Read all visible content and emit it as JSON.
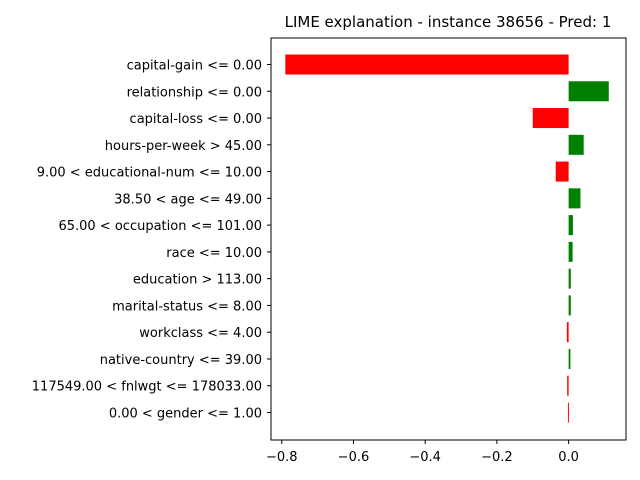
{
  "chart_data": {
    "type": "bar",
    "orientation": "horizontal",
    "title": "LIME explanation - instance 38656 - Pred: 1",
    "xlabel": "",
    "ylabel": "",
    "xlim": [
      -0.83,
      0.16
    ],
    "xticks": [
      -0.8,
      -0.6,
      -0.4,
      -0.2,
      0.0
    ],
    "xtick_labels": [
      "−0.8",
      "−0.6",
      "−0.4",
      "−0.2",
      "0.0"
    ],
    "grid": false,
    "legend": "none",
    "colors": {
      "positive": "#008000",
      "negative": "#ff0000"
    },
    "categories": [
      "capital-gain <= 0.00",
      "relationship <= 0.00",
      "capital-loss <= 0.00",
      "hours-per-week > 45.00",
      "9.00 < educational-num <= 10.00",
      "38.50 < age <= 49.00",
      "65.00 < occupation <= 101.00",
      "race <= 10.00",
      "education > 113.00",
      "marital-status <= 8.00",
      "workclass <= 4.00",
      "native-country <= 39.00",
      "117549.00 < fnlwgt <= 178033.00",
      "0.00 < gender <= 1.00"
    ],
    "values": [
      -0.79,
      0.112,
      -0.1,
      0.042,
      -0.036,
      0.033,
      0.012,
      0.011,
      0.006,
      0.006,
      -0.005,
      0.005,
      -0.004,
      -0.002
    ]
  }
}
